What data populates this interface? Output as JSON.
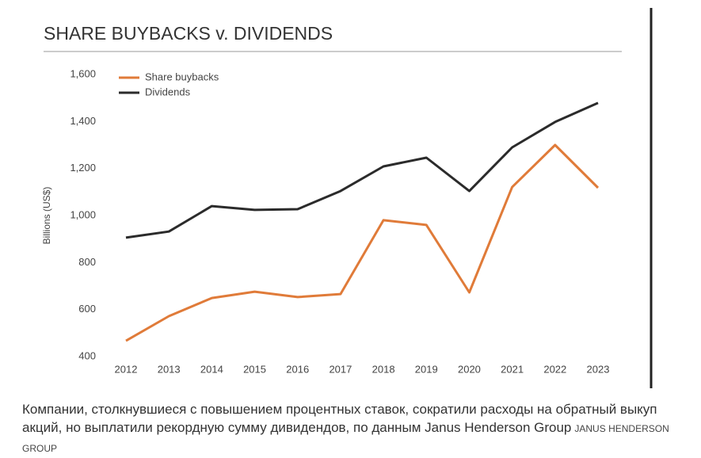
{
  "chart_data": {
    "type": "line",
    "title": "SHARE BUYBACKS v. DIVIDENDS",
    "y_label": "Billions (US$)",
    "categories": [
      "2012",
      "2013",
      "2014",
      "2015",
      "2016",
      "2017",
      "2018",
      "2019",
      "2020",
      "2021",
      "2022",
      "2023"
    ],
    "series": [
      {
        "name": "Share buybacks",
        "color": "#e07b39",
        "values": [
          467,
          572,
          649,
          676,
          653,
          666,
          980,
          960,
          673,
          1121,
          1300,
          1118
        ]
      },
      {
        "name": "Dividends",
        "color": "#2b2b2b",
        "values": [
          906,
          932,
          1040,
          1024,
          1027,
          1104,
          1209,
          1246,
          1104,
          1290,
          1398,
          1479
        ]
      }
    ],
    "ylim": [
      400,
      1600
    ],
    "yticks": [
      400,
      600,
      800,
      {
        "value": 1000,
        "label": "1,000"
      },
      {
        "value": 1200,
        "label": "1,200"
      },
      {
        "value": 1400,
        "label": "1,400"
      },
      {
        "value": 1600,
        "label": "1,600"
      }
    ],
    "grid": false,
    "legend": "top-left"
  },
  "caption": "Компании, столкнувшиеся с повышением процентных ставок, сократили расходы на обратный выкуп акций, но выплатили рекордную сумму дивидендов, по данным Janus Henderson Group",
  "credit": "Janus Henderson Group"
}
